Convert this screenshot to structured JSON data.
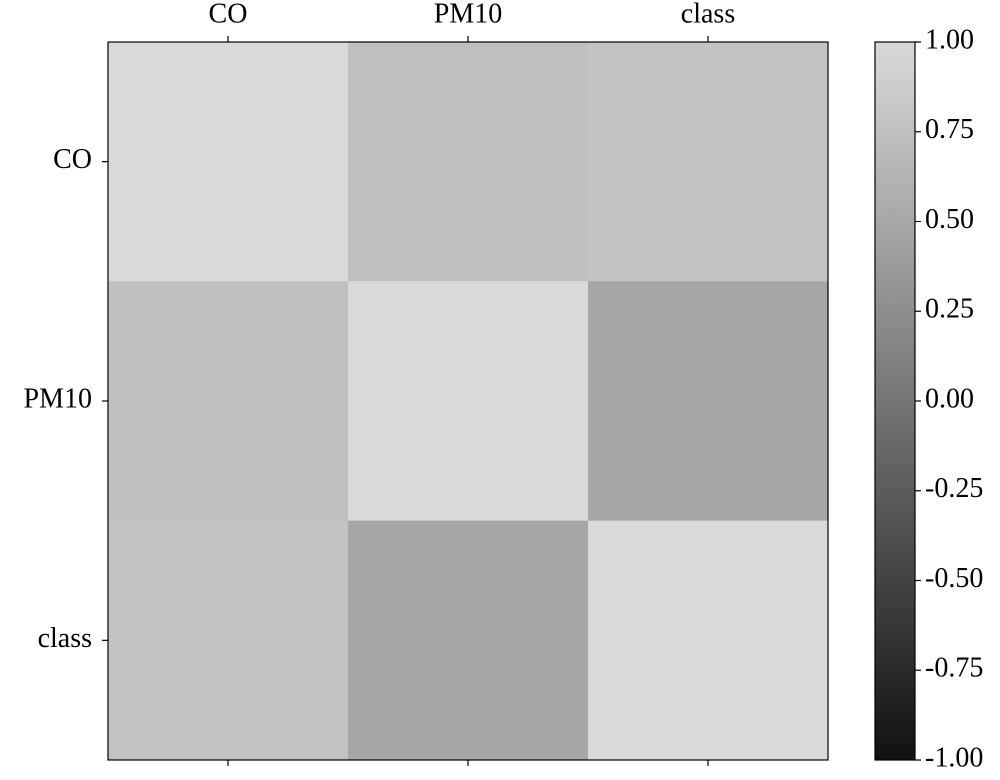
{
  "chart_data": {
    "type": "heatmap",
    "x_categories": [
      "CO",
      "PM10",
      "class"
    ],
    "y_categories": [
      "CO",
      "PM10",
      "class"
    ],
    "values": [
      [
        1,
        0.75,
        0.78
      ],
      [
        0.75,
        1,
        0.49
      ],
      [
        0.78,
        0.49,
        1
      ]
    ],
    "colormap": [
      "#111111",
      "#d9d9d9"
    ],
    "zlim": [
      -1,
      1
    ],
    "zticks": [
      {
        "value": 1,
        "label": "1.00"
      },
      0.75,
      {
        "value": 0.5,
        "label": "0.50"
      },
      0.25,
      {
        "value": 0,
        "label": "0.00"
      },
      -0.25,
      {
        "value": -0.5,
        "label": "-0.50"
      },
      -0.75,
      {
        "value": -1,
        "label": "-1.00"
      }
    ]
  }
}
